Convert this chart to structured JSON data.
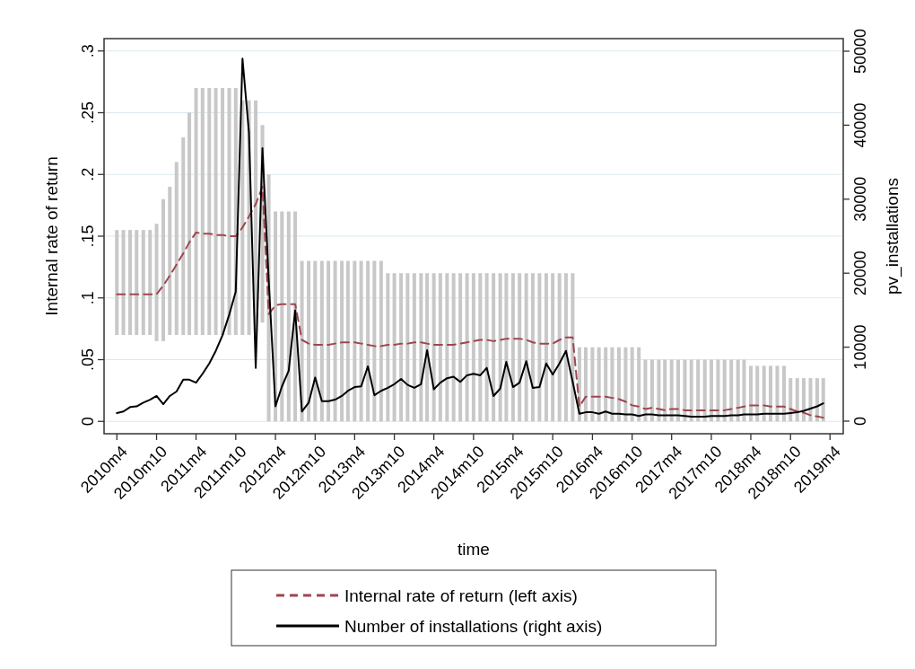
{
  "chart_data": {
    "type": "line",
    "xlabel": "time",
    "ylabel": "Internal rate of return",
    "y2label": "pv_installations",
    "x": [
      "2010-04",
      "2010-05",
      "2010-06",
      "2010-07",
      "2010-08",
      "2010-09",
      "2010-10",
      "2010-11",
      "2010-12",
      "2011-01",
      "2011-02",
      "2011-03",
      "2011-04",
      "2011-05",
      "2011-06",
      "2011-07",
      "2011-08",
      "2011-09",
      "2011-10",
      "2011-11",
      "2011-12",
      "2012-01",
      "2012-02",
      "2012-03",
      "2012-04",
      "2012-05",
      "2012-06",
      "2012-07",
      "2012-08",
      "2012-09",
      "2012-10",
      "2012-11",
      "2012-12",
      "2013-01",
      "2013-02",
      "2013-03",
      "2013-04",
      "2013-05",
      "2013-06",
      "2013-07",
      "2013-08",
      "2013-09",
      "2013-10",
      "2013-11",
      "2013-12",
      "2014-01",
      "2014-02",
      "2014-03",
      "2014-04",
      "2014-05",
      "2014-06",
      "2014-07",
      "2014-08",
      "2014-09",
      "2014-10",
      "2014-11",
      "2014-12",
      "2015-01",
      "2015-02",
      "2015-03",
      "2015-04",
      "2015-05",
      "2015-06",
      "2015-07",
      "2015-08",
      "2015-09",
      "2015-10",
      "2015-11",
      "2015-12",
      "2016-01",
      "2016-02",
      "2016-03",
      "2016-04",
      "2016-05",
      "2016-06",
      "2016-07",
      "2016-08",
      "2016-09",
      "2016-10",
      "2016-11",
      "2016-12",
      "2017-01",
      "2017-02",
      "2017-03",
      "2017-04",
      "2017-05",
      "2017-06",
      "2017-07",
      "2017-08",
      "2017-09",
      "2017-10",
      "2017-11",
      "2017-12",
      "2018-01",
      "2018-02",
      "2018-03",
      "2018-04",
      "2018-05",
      "2018-06",
      "2018-07",
      "2018-08",
      "2018-09",
      "2018-10",
      "2018-11",
      "2018-12",
      "2019-01",
      "2019-02",
      "2019-03"
    ],
    "series": [
      {
        "type": "bar",
        "color": "#c8c8c8",
        "base": [
          0.07,
          0.07,
          0.07,
          0.07,
          0.07,
          0.07,
          0.065,
          0.065,
          0.07,
          0.07,
          0.07,
          0.07,
          0.07,
          0.07,
          0.07,
          0.07,
          0.07,
          0.07,
          0.07,
          0.07,
          0.07,
          0.07,
          0.08,
          0,
          0,
          0,
          0,
          0,
          0,
          0,
          0,
          0,
          0,
          0,
          0,
          0,
          0,
          0,
          0,
          0,
          0,
          0,
          0,
          0,
          0,
          0,
          0,
          0,
          0,
          0,
          0,
          0,
          0,
          0,
          0,
          0,
          0,
          0,
          0,
          0,
          0,
          0,
          0,
          0,
          0,
          0,
          0,
          0,
          0,
          0,
          0,
          0,
          0,
          0,
          0,
          0,
          0,
          0,
          0,
          0,
          0,
          0,
          0,
          0,
          0,
          0,
          0,
          0,
          0,
          0,
          0,
          0,
          0,
          0,
          0,
          0,
          0,
          0,
          0,
          0,
          0,
          0,
          0,
          0,
          0,
          0,
          0,
          0
        ],
        "values": [
          0.085,
          0.085,
          0.085,
          0.085,
          0.085,
          0.085,
          0.095,
          0.115,
          0.12,
          0.14,
          0.16,
          0.18,
          0.2,
          0.2,
          0.2,
          0.2,
          0.2,
          0.2,
          0.2,
          0.19,
          0.19,
          0.19,
          0.16,
          0.2,
          0.17,
          0.17,
          0.17,
          0.17,
          0.13,
          0.13,
          0.13,
          0.13,
          0.13,
          0.13,
          0.13,
          0.13,
          0.13,
          0.13,
          0.13,
          0.13,
          0.13,
          0.12,
          0.12,
          0.12,
          0.12,
          0.12,
          0.12,
          0.12,
          0.12,
          0.12,
          0.12,
          0.12,
          0.12,
          0.12,
          0.12,
          0.12,
          0.12,
          0.12,
          0.12,
          0.12,
          0.12,
          0.12,
          0.12,
          0.12,
          0.12,
          0.12,
          0.12,
          0.12,
          0.12,
          0.12,
          0.06,
          0.06,
          0.06,
          0.06,
          0.06,
          0.06,
          0.06,
          0.06,
          0.06,
          0.06,
          0.05,
          0.05,
          0.05,
          0.05,
          0.05,
          0.05,
          0.05,
          0.05,
          0.05,
          0.05,
          0.05,
          0.05,
          0.05,
          0.05,
          0.05,
          0.05,
          0.045,
          0.045,
          0.045,
          0.045,
          0.045,
          0.045,
          0.035,
          0.035,
          0.035,
          0.035,
          0.035,
          0.035
        ]
      },
      {
        "name": "Internal rate of return (left axis)",
        "color": "#a0454e",
        "line_style": "dashed",
        "values": [
          0.103,
          0.103,
          0.103,
          0.103,
          0.103,
          0.103,
          0.103,
          0.11,
          0.118,
          0.127,
          0.136,
          0.145,
          0.153,
          0.152,
          0.152,
          0.151,
          0.151,
          0.15,
          0.15,
          0.157,
          0.166,
          0.176,
          0.19,
          0.087,
          0.094,
          0.095,
          0.095,
          0.095,
          0.066,
          0.063,
          0.062,
          0.062,
          0.062,
          0.063,
          0.064,
          0.064,
          0.064,
          0.063,
          0.062,
          0.061,
          0.061,
          0.062,
          0.062,
          0.063,
          0.063,
          0.064,
          0.064,
          0.063,
          0.062,
          0.062,
          0.062,
          0.062,
          0.063,
          0.064,
          0.065,
          0.066,
          0.066,
          0.065,
          0.066,
          0.067,
          0.067,
          0.067,
          0.066,
          0.064,
          0.063,
          0.063,
          0.063,
          0.066,
          0.068,
          0.068,
          0.012,
          0.02,
          0.02,
          0.02,
          0.02,
          0.019,
          0.018,
          0.016,
          0.013,
          0.012,
          0.01,
          0.011,
          0.01,
          0.009,
          0.01,
          0.01,
          0.009,
          0.009,
          0.009,
          0.009,
          0.009,
          0.009,
          0.009,
          0.01,
          0.011,
          0.012,
          0.013,
          0.013,
          0.013,
          0.012,
          0.012,
          0.012,
          0.01,
          0.008,
          0.007,
          0.005,
          0.004,
          0.003
        ]
      },
      {
        "name": "Number of installations (right axis)",
        "color": "#000000",
        "line_style": "solid",
        "axis": "y2",
        "values": [
          1100,
          1300,
          1900,
          2000,
          2500,
          2900,
          3400,
          2300,
          3400,
          4000,
          5600,
          5600,
          5200,
          6400,
          7800,
          9500,
          11600,
          14400,
          17500,
          49000,
          39000,
          7200,
          36900,
          19000,
          2000,
          4700,
          6800,
          15000,
          1300,
          2500,
          5900,
          2700,
          2700,
          2900,
          3400,
          4100,
          4600,
          4700,
          7400,
          3500,
          4100,
          4500,
          5000,
          5700,
          4900,
          4500,
          5000,
          9600,
          4300,
          5200,
          5800,
          6000,
          5300,
          6200,
          6400,
          6200,
          7200,
          3400,
          4400,
          8000,
          4600,
          5200,
          8100,
          4500,
          4600,
          7800,
          6300,
          7800,
          9500,
          5300,
          1000,
          1200,
          1200,
          1000,
          1300,
          1000,
          1000,
          900,
          900,
          700,
          900,
          900,
          800,
          800,
          800,
          800,
          700,
          600,
          600,
          600,
          700,
          700,
          700,
          800,
          800,
          900,
          900,
          900,
          1000,
          1000,
          1000,
          1000,
          1100,
          1200,
          1400,
          1700,
          2000,
          2400
        ]
      }
    ],
    "xlim": [
      "2010-02",
      "2019-06"
    ],
    "xticks": [
      {
        "value": "2010-04",
        "label": "2010m4"
      },
      {
        "value": "2010-10",
        "label": "2010m10"
      },
      {
        "value": "2011-04",
        "label": "2011m4"
      },
      {
        "value": "2011-10",
        "label": "2011m10"
      },
      {
        "value": "2012-04",
        "label": "2012m4"
      },
      {
        "value": "2012-10",
        "label": "2012m10"
      },
      {
        "value": "2013-04",
        "label": "2013m4"
      },
      {
        "value": "2013-10",
        "label": "2013m10"
      },
      {
        "value": "2014-04",
        "label": "2014m4"
      },
      {
        "value": "2014-10",
        "label": "2014m10"
      },
      {
        "value": "2015-04",
        "label": "2015m4"
      },
      {
        "value": "2015-10",
        "label": "2015m10"
      },
      {
        "value": "2016-04",
        "label": "2016m4"
      },
      {
        "value": "2016-10",
        "label": "2016m10"
      },
      {
        "value": "2017-04",
        "label": "2017m4"
      },
      {
        "value": "2017-10",
        "label": "2017m10"
      },
      {
        "value": "2018-04",
        "label": "2018m4"
      },
      {
        "value": "2018-10",
        "label": "2018m10"
      },
      {
        "value": "2019-04",
        "label": "2019m4"
      }
    ],
    "ylim": [
      -0.01,
      0.31
    ],
    "yticks": [
      0,
      {
        "value": 0.05,
        "label": ".05"
      },
      {
        "value": 0.1,
        "label": ".1"
      },
      {
        "value": 0.15,
        "label": ".15"
      },
      {
        "value": 0.2,
        "label": ".2"
      },
      {
        "value": 0.25,
        "label": ".25"
      },
      {
        "value": 0.3,
        "label": ".3"
      }
    ],
    "y2lim": [
      -1700,
      51700
    ],
    "y2ticks": [
      0,
      10000,
      20000,
      30000,
      40000,
      50000
    ],
    "grid": "y",
    "legend": "bottom"
  }
}
